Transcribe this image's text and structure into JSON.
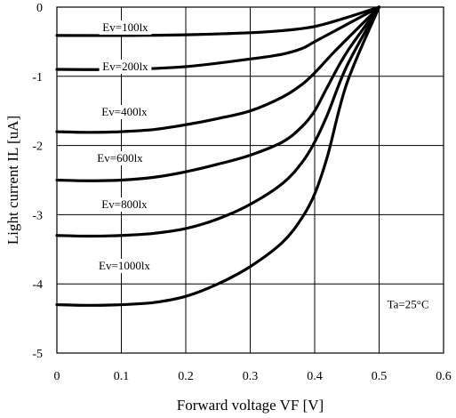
{
  "chart_data": {
    "type": "line",
    "title": "",
    "xlabel": "Forward voltage VF [V]",
    "ylabel": "Light current IL [uA]",
    "xlim": [
      0,
      0.6
    ],
    "ylim": [
      -5,
      0
    ],
    "x_ticks": [
      "0",
      "0.1",
      "0.2",
      "0.3",
      "0.4",
      "0.5",
      "0.6"
    ],
    "y_ticks": [
      "0",
      "-1",
      "-2",
      "-3",
      "-4",
      "-5"
    ],
    "grid": true,
    "annotation": "Ta=25°C",
    "series": [
      {
        "name": "Ev=100lx",
        "x": [
          0,
          0.1,
          0.2,
          0.3,
          0.35,
          0.4,
          0.45,
          0.5
        ],
        "y": [
          -0.41,
          -0.41,
          -0.4,
          -0.37,
          -0.34,
          -0.28,
          -0.15,
          0
        ]
      },
      {
        "name": "Ev=200lx",
        "x": [
          0,
          0.1,
          0.2,
          0.3,
          0.35,
          0.38,
          0.4,
          0.45,
          0.5
        ],
        "y": [
          -0.9,
          -0.9,
          -0.86,
          -0.75,
          -0.68,
          -0.6,
          -0.5,
          -0.25,
          0
        ]
      },
      {
        "name": "Ev=400lx",
        "x": [
          0,
          0.05,
          0.1,
          0.15,
          0.2,
          0.25,
          0.3,
          0.35,
          0.38,
          0.4,
          0.43,
          0.46,
          0.5
        ],
        "y": [
          -1.8,
          -1.81,
          -1.8,
          -1.77,
          -1.7,
          -1.61,
          -1.5,
          -1.3,
          -1.12,
          -0.95,
          -0.65,
          -0.37,
          0
        ]
      },
      {
        "name": "Ev=600lx",
        "x": [
          0,
          0.05,
          0.1,
          0.15,
          0.2,
          0.25,
          0.3,
          0.35,
          0.38,
          0.4,
          0.42,
          0.45,
          0.5
        ],
        "y": [
          -2.5,
          -2.51,
          -2.5,
          -2.46,
          -2.38,
          -2.27,
          -2.14,
          -1.95,
          -1.73,
          -1.5,
          -1.15,
          -0.65,
          0
        ]
      },
      {
        "name": "Ev=800lx",
        "x": [
          0,
          0.05,
          0.1,
          0.15,
          0.2,
          0.25,
          0.3,
          0.35,
          0.38,
          0.4,
          0.42,
          0.45,
          0.5
        ],
        "y": [
          -3.3,
          -3.31,
          -3.3,
          -3.27,
          -3.2,
          -3.06,
          -2.85,
          -2.55,
          -2.25,
          -1.95,
          -1.55,
          -0.85,
          0
        ]
      },
      {
        "name": "Ev=1000lx",
        "x": [
          0,
          0.05,
          0.1,
          0.15,
          0.2,
          0.25,
          0.3,
          0.35,
          0.38,
          0.4,
          0.42,
          0.45,
          0.5
        ],
        "y": [
          -4.3,
          -4.31,
          -4.3,
          -4.27,
          -4.18,
          -4.0,
          -3.75,
          -3.4,
          -3.05,
          -2.7,
          -2.15,
          -1.1,
          0
        ]
      }
    ]
  }
}
